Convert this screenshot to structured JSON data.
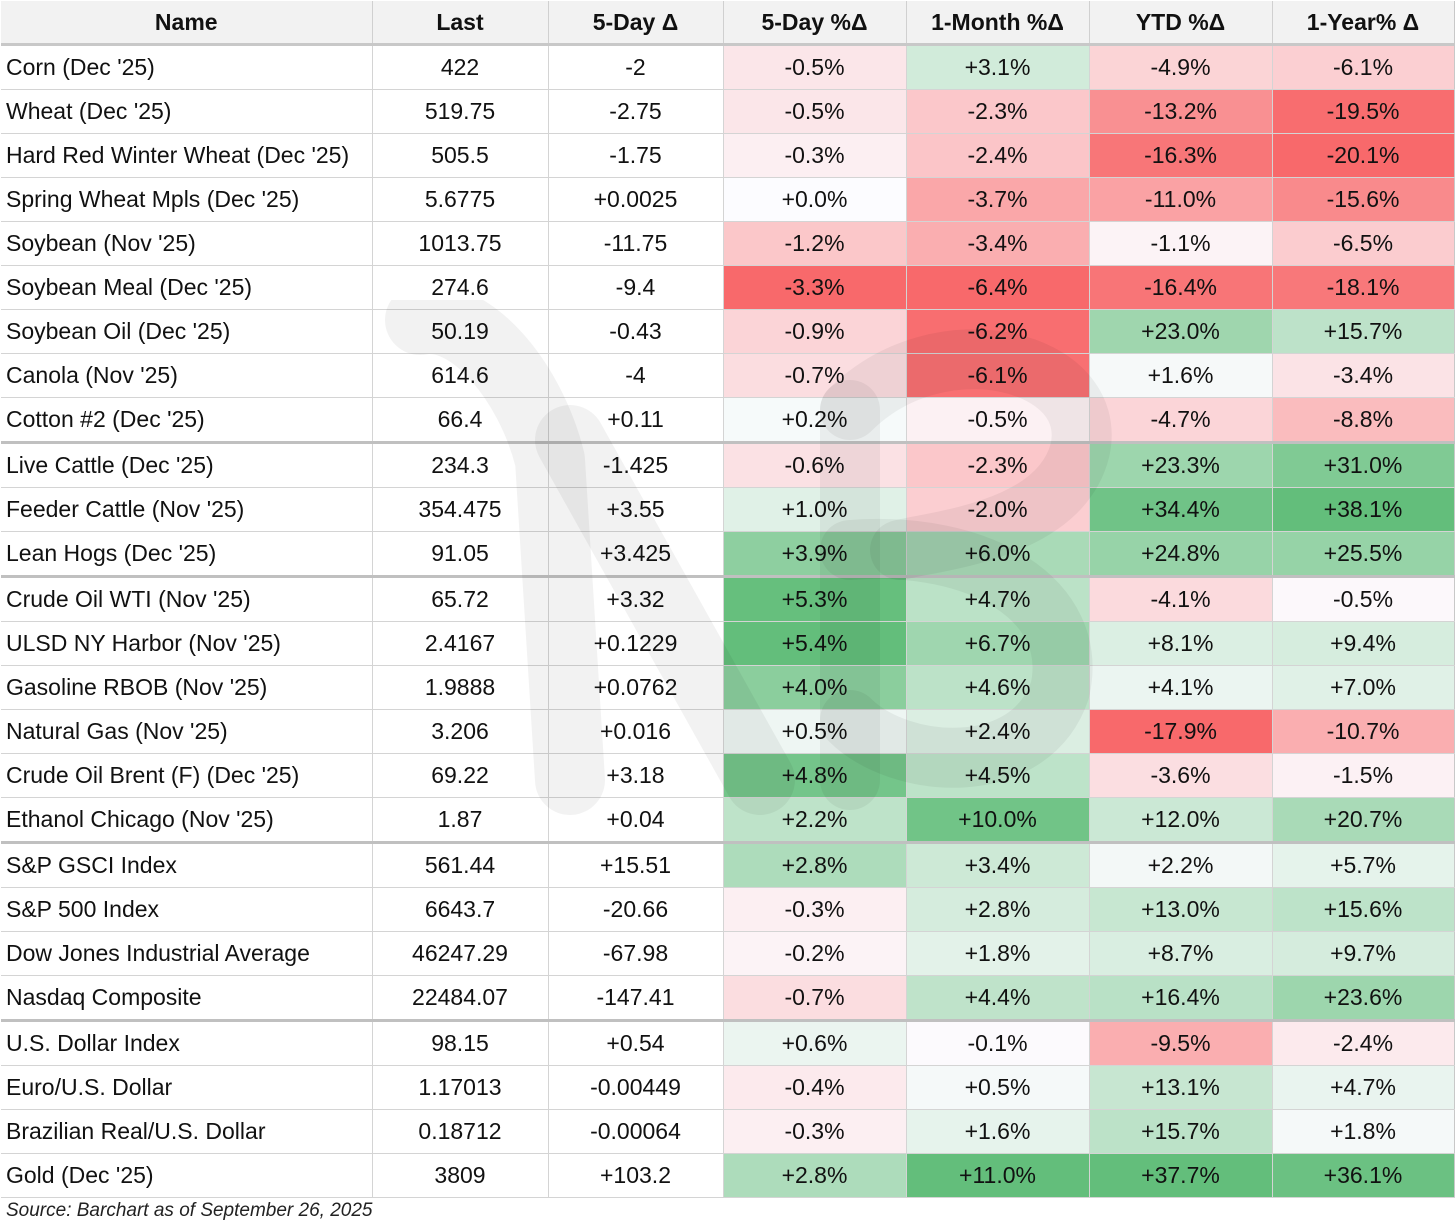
{
  "chart_data": {
    "type": "table",
    "columns": [
      "Name",
      "Last",
      "5-Day Δ",
      "5-Day %Δ",
      "1-Month %Δ",
      "YTD %Δ",
      "1-Year% Δ"
    ],
    "rows": [
      [
        "Corn (Dec '25)",
        "422",
        "-2",
        "-0.5%",
        "+3.1%",
        "-4.9%",
        "-6.1%"
      ],
      [
        "Wheat (Dec '25)",
        "519.75",
        "-2.75",
        "-0.5%",
        "-2.3%",
        "-13.2%",
        "-19.5%"
      ],
      [
        "Hard Red Winter Wheat (Dec '25)",
        "505.5",
        "-1.75",
        "-0.3%",
        "-2.4%",
        "-16.3%",
        "-20.1%"
      ],
      [
        "Spring Wheat Mpls (Dec '25)",
        "5.6775",
        "+0.0025",
        "+0.0%",
        "-3.7%",
        "-11.0%",
        "-15.6%"
      ],
      [
        "Soybean (Nov '25)",
        "1013.75",
        "-11.75",
        "-1.2%",
        "-3.4%",
        "-1.1%",
        "-6.5%"
      ],
      [
        "Soybean Meal (Dec '25)",
        "274.6",
        "-9.4",
        "-3.3%",
        "-6.4%",
        "-16.4%",
        "-18.1%"
      ],
      [
        "Soybean Oil (Dec '25)",
        "50.19",
        "-0.43",
        "-0.9%",
        "-6.2%",
        "+23.0%",
        "+15.7%"
      ],
      [
        "Canola (Nov '25)",
        "614.6",
        "-4",
        "-0.7%",
        "-6.1%",
        "+1.6%",
        "-3.4%"
      ],
      [
        "Cotton #2 (Dec '25)",
        "66.4",
        "+0.11",
        "+0.2%",
        "-0.5%",
        "-4.7%",
        "-8.8%"
      ],
      [
        "Live Cattle (Dec '25)",
        "234.3",
        "-1.425",
        "-0.6%",
        "-2.3%",
        "+23.3%",
        "+31.0%"
      ],
      [
        "Feeder Cattle (Nov '25)",
        "354.475",
        "+3.55",
        "+1.0%",
        "-2.0%",
        "+34.4%",
        "+38.1%"
      ],
      [
        "Lean Hogs (Dec '25)",
        "91.05",
        "+3.425",
        "+3.9%",
        "+6.0%",
        "+24.8%",
        "+25.5%"
      ],
      [
        "Crude Oil WTI (Nov '25)",
        "65.72",
        "+3.32",
        "+5.3%",
        "+4.7%",
        "-4.1%",
        "-0.5%"
      ],
      [
        "ULSD NY Harbor (Nov '25)",
        "2.4167",
        "+0.1229",
        "+5.4%",
        "+6.7%",
        "+8.1%",
        "+9.4%"
      ],
      [
        "Gasoline RBOB (Nov '25)",
        "1.9888",
        "+0.0762",
        "+4.0%",
        "+4.6%",
        "+4.1%",
        "+7.0%"
      ],
      [
        "Natural Gas (Nov '25)",
        "3.206",
        "+0.016",
        "+0.5%",
        "+2.4%",
        "-17.9%",
        "-10.7%"
      ],
      [
        "Crude Oil Brent (F) (Dec '25)",
        "69.22",
        "+3.18",
        "+4.8%",
        "+4.5%",
        "-3.6%",
        "-1.5%"
      ],
      [
        "Ethanol Chicago (Nov '25)",
        "1.87",
        "+0.04",
        "+2.2%",
        "+10.0%",
        "+12.0%",
        "+20.7%"
      ],
      [
        "S&P GSCI Index",
        "561.44",
        "+15.51",
        "+2.8%",
        "+3.4%",
        "+2.2%",
        "+5.7%"
      ],
      [
        "S&P 500 Index",
        "6643.7",
        "-20.66",
        "-0.3%",
        "+2.8%",
        "+13.0%",
        "+15.6%"
      ],
      [
        "Dow Jones Industrial Average",
        "46247.29",
        "-67.98",
        "-0.2%",
        "+1.8%",
        "+8.7%",
        "+9.7%"
      ],
      [
        "Nasdaq Composite",
        "22484.07",
        "-147.41",
        "-0.7%",
        "+4.4%",
        "+16.4%",
        "+23.6%"
      ],
      [
        "U.S. Dollar Index",
        "98.15",
        "+0.54",
        "+0.6%",
        "-0.1%",
        "-9.5%",
        "-2.4%"
      ],
      [
        "Euro/U.S. Dollar",
        "1.17013",
        "-0.00449",
        "-0.4%",
        "+0.5%",
        "+13.1%",
        "+4.7%"
      ],
      [
        "Brazilian Real/U.S. Dollar",
        "0.18712",
        "-0.00064",
        "-0.3%",
        "+1.6%",
        "+15.7%",
        "+1.8%"
      ],
      [
        "Gold (Dec '25)",
        "3809",
        "+103.2",
        "+2.8%",
        "+11.0%",
        "+37.7%",
        "+36.1%"
      ]
    ],
    "group_ends": [
      8,
      11,
      17,
      21
    ],
    "heat_columns": [
      3,
      4,
      5,
      6
    ],
    "heat_colors": {
      "negative": "#f8696b",
      "neutral": "#fcfcff",
      "positive": "#63be7b"
    },
    "source": "Source: Barchart as of September 26, 2025"
  }
}
